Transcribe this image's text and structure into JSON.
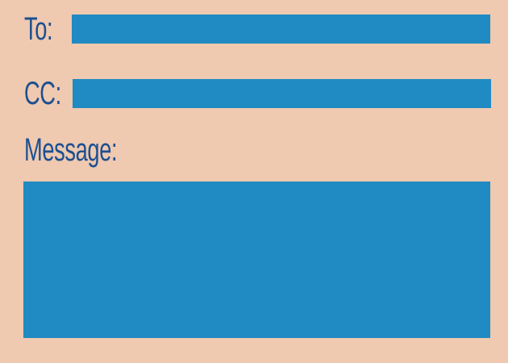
{
  "form": {
    "to_label": "To:",
    "cc_label": "CC:",
    "message_label": "Message:",
    "to_value": "",
    "cc_value": "",
    "message_value": ""
  },
  "colors": {
    "background": "#EFC9B0",
    "label_text": "#1D4F91",
    "field_fill": "#208AC2"
  }
}
